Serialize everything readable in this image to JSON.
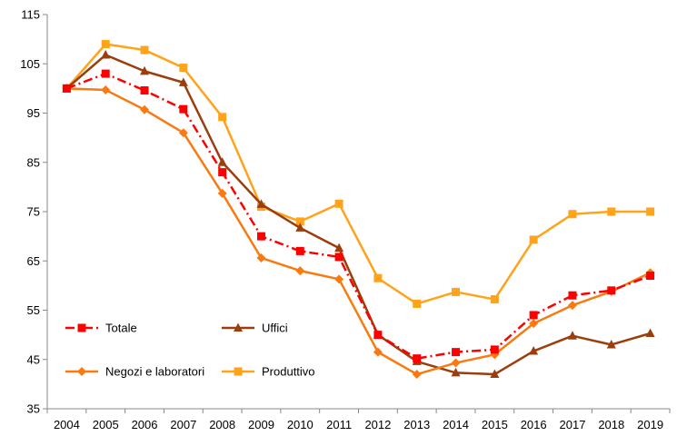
{
  "chart_data": {
    "type": "line",
    "categories": [
      "2004",
      "2005",
      "2006",
      "2007",
      "2008",
      "2009",
      "2010",
      "2011",
      "2012",
      "2013",
      "2014",
      "2015",
      "2016",
      "2017",
      "2018",
      "2019"
    ],
    "ylim": [
      35,
      115
    ],
    "yticks": [
      "35",
      "45",
      "55",
      "65",
      "75",
      "85",
      "95",
      "105",
      "115"
    ],
    "grid": false,
    "legend_position": "inside-bottom-left",
    "series": [
      {
        "name": "Totale",
        "color": "#ff0000",
        "marker": "square",
        "line_style": "dashdot",
        "values": [
          100,
          103,
          99.6,
          95.8,
          83,
          70,
          67,
          65.8,
          50,
          45.2,
          46.5,
          47,
          54,
          58,
          59,
          62
        ]
      },
      {
        "name": "Uffici",
        "color": "#9c3d0c",
        "marker": "triangle",
        "line_style": "solid",
        "values": [
          100,
          106.8,
          103.5,
          101.2,
          85,
          76.5,
          71.7,
          67.6,
          50,
          44.6,
          42.3,
          42,
          46.7,
          49.8,
          48,
          50.3
        ]
      },
      {
        "name": "Negozi e laboratori",
        "color": "#f97a10",
        "marker": "diamond",
        "line_style": "solid",
        "values": [
          100,
          99.7,
          95.7,
          91,
          78.7,
          65.6,
          63,
          61.3,
          46.5,
          42,
          44.3,
          46,
          52.3,
          56,
          58.8,
          62.6
        ]
      },
      {
        "name": "Produttivo",
        "color": "#ffa31a",
        "marker": "square",
        "line_style": "solid",
        "values": [
          100,
          109,
          107.8,
          104.2,
          94.2,
          76,
          73,
          76.6,
          61.5,
          56.3,
          58.7,
          57.2,
          69.3,
          74.5,
          75,
          75
        ]
      }
    ]
  }
}
